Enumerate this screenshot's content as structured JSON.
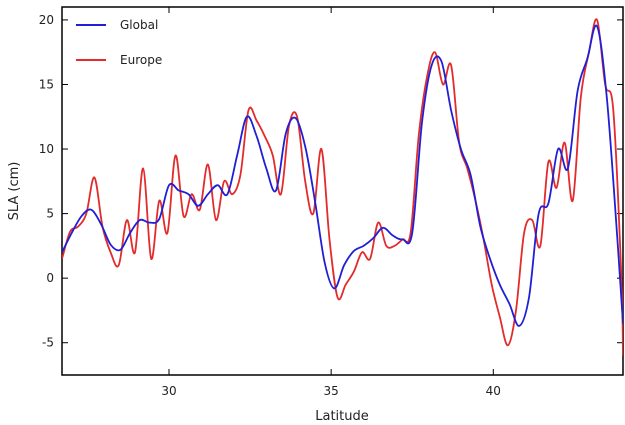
{
  "chart_data": {
    "type": "line",
    "title": "",
    "xlabel": "Latitude",
    "ylabel": "SLA (cm)",
    "xlim": [
      26.7,
      44.0
    ],
    "ylim": [
      -7.5,
      21.0
    ],
    "xticks": [
      30,
      35,
      40
    ],
    "yticks": [
      -5,
      0,
      5,
      10,
      15,
      20
    ],
    "grid": false,
    "legend": "top-left",
    "series": [
      {
        "name": "Global",
        "color": "#1f1fd6",
        "x": [
          26.7,
          27.0,
          27.3,
          27.6,
          27.9,
          28.2,
          28.5,
          28.8,
          29.1,
          29.4,
          29.7,
          30.0,
          30.3,
          30.6,
          30.9,
          31.2,
          31.5,
          31.8,
          32.1,
          32.4,
          32.7,
          33.0,
          33.3,
          33.6,
          33.9,
          34.2,
          34.5,
          34.8,
          35.1,
          35.4,
          35.7,
          36.0,
          36.3,
          36.6,
          36.9,
          37.2,
          37.5,
          37.8,
          38.1,
          38.4,
          38.7,
          39.0,
          39.3,
          39.6,
          39.9,
          40.2,
          40.5,
          40.8,
          41.1,
          41.4,
          41.7,
          42.0,
          42.3,
          42.6,
          42.9,
          43.2,
          43.5,
          43.8,
          44.0
        ],
        "y": [
          2.0,
          3.5,
          4.8,
          5.3,
          4.2,
          2.6,
          2.2,
          3.5,
          4.5,
          4.3,
          4.6,
          7.2,
          6.8,
          6.5,
          5.6,
          6.5,
          7.2,
          6.5,
          9.5,
          12.5,
          11.0,
          8.5,
          6.8,
          11.2,
          12.4,
          10.2,
          6.0,
          1.2,
          -0.8,
          1.0,
          2.1,
          2.5,
          3.1,
          3.9,
          3.3,
          3.0,
          3.5,
          12.0,
          16.5,
          16.8,
          13.0,
          10.0,
          8.0,
          4.0,
          1.5,
          -0.5,
          -2.0,
          -3.7,
          -1.5,
          5.0,
          5.8,
          10.0,
          8.5,
          14.5,
          17.0,
          19.5,
          14.0,
          4.0,
          -3.5
        ]
      },
      {
        "name": "Europe",
        "color": "#e32b2b",
        "x": [
          26.7,
          26.95,
          27.2,
          27.45,
          27.7,
          27.95,
          28.2,
          28.45,
          28.7,
          28.95,
          29.2,
          29.45,
          29.7,
          29.95,
          30.2,
          30.45,
          30.7,
          30.95,
          31.2,
          31.45,
          31.7,
          31.95,
          32.2,
          32.45,
          32.7,
          32.95,
          33.2,
          33.45,
          33.7,
          33.95,
          34.2,
          34.45,
          34.7,
          34.95,
          35.2,
          35.45,
          35.7,
          35.95,
          36.2,
          36.45,
          36.7,
          36.95,
          37.2,
          37.45,
          37.7,
          37.95,
          38.2,
          38.45,
          38.7,
          38.95,
          39.2,
          39.45,
          39.7,
          39.95,
          40.2,
          40.45,
          40.7,
          40.95,
          41.2,
          41.45,
          41.7,
          41.95,
          42.2,
          42.45,
          42.7,
          42.95,
          43.2,
          43.45,
          43.7,
          43.95,
          44.0
        ],
        "y": [
          1.5,
          3.6,
          4.0,
          5.0,
          7.8,
          4.0,
          2.0,
          1.0,
          4.5,
          2.0,
          8.5,
          1.5,
          6.0,
          3.5,
          9.5,
          4.8,
          6.5,
          5.3,
          8.8,
          4.5,
          7.5,
          6.5,
          8.0,
          13.0,
          12.2,
          11.0,
          9.5,
          6.5,
          11.8,
          12.5,
          7.5,
          5.0,
          10.0,
          3.0,
          -1.5,
          -0.5,
          0.5,
          2.0,
          1.5,
          4.3,
          2.5,
          2.5,
          3.0,
          3.5,
          11.0,
          15.5,
          17.5,
          15.0,
          16.5,
          10.5,
          8.5,
          6.0,
          3.0,
          -0.5,
          -3.0,
          -5.2,
          -2.5,
          3.5,
          4.5,
          2.5,
          9.0,
          7.0,
          10.5,
          6.0,
          14.0,
          17.5,
          20.0,
          15.0,
          13.0,
          0.0,
          -6.0
        ]
      }
    ]
  }
}
